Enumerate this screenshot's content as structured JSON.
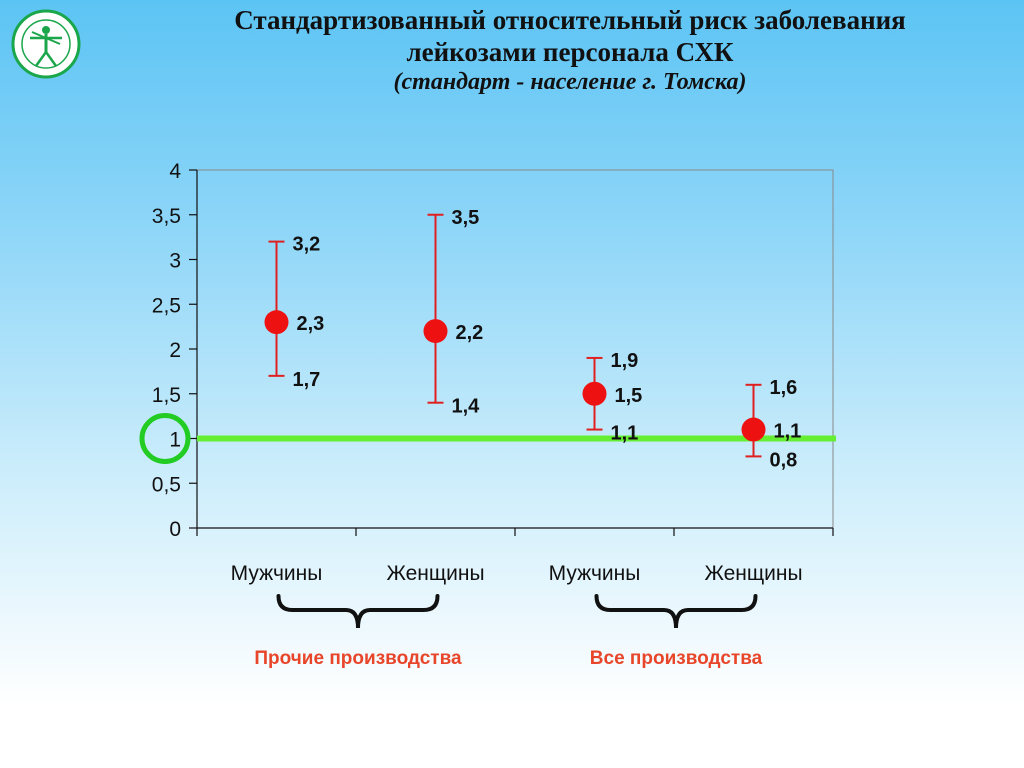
{
  "slide": {
    "title_line1": "Стандартизованный относительный риск заболевания",
    "title_line2": "лейкозами персонала СХК",
    "subtitle": "(стандарт - население г. Томска)"
  },
  "logo": {
    "icon": "vitruvian-man-emblem-icon",
    "color": "#1aa64a"
  },
  "colors": {
    "point": "#ee1111",
    "whisker": "#e02020",
    "reference": "#66ee33",
    "highlight_circle": "#22cc22",
    "group_label": "#e8462a"
  },
  "chart_data": {
    "type": "scatter",
    "title": "",
    "xlabel": "",
    "ylabel": "",
    "ylim": [
      0,
      4
    ],
    "yticks": [
      "0",
      "0,5",
      "1",
      "1,5",
      "2",
      "2,5",
      "3",
      "3,5",
      "4"
    ],
    "yticks_values": [
      0,
      0.5,
      1,
      1.5,
      2,
      2.5,
      3,
      3.5,
      4
    ],
    "categories": [
      "Мужчины",
      "Женщины",
      "Мужчины",
      "Женщины"
    ],
    "points": [
      {
        "value": 2.3,
        "lower": 1.7,
        "upper": 3.2,
        "value_label": "2,3",
        "lower_label": "1,7",
        "upper_label": "3,2"
      },
      {
        "value": 2.2,
        "lower": 1.4,
        "upper": 3.5,
        "value_label": "2,2",
        "lower_label": "1,4",
        "upper_label": "3,5"
      },
      {
        "value": 1.5,
        "lower": 1.1,
        "upper": 1.9,
        "value_label": "1,5",
        "lower_label": "1,1",
        "upper_label": "1,9"
      },
      {
        "value": 1.1,
        "lower": 0.8,
        "upper": 1.6,
        "value_label": "1,1",
        "lower_label": "0,8",
        "upper_label": "1,6"
      }
    ],
    "reference_line": 1,
    "groups": [
      {
        "label": "Прочие производства",
        "categories": [
          0,
          1
        ]
      },
      {
        "label": "Все производства",
        "categories": [
          2,
          3
        ]
      }
    ],
    "grid": false,
    "legend": "none"
  }
}
